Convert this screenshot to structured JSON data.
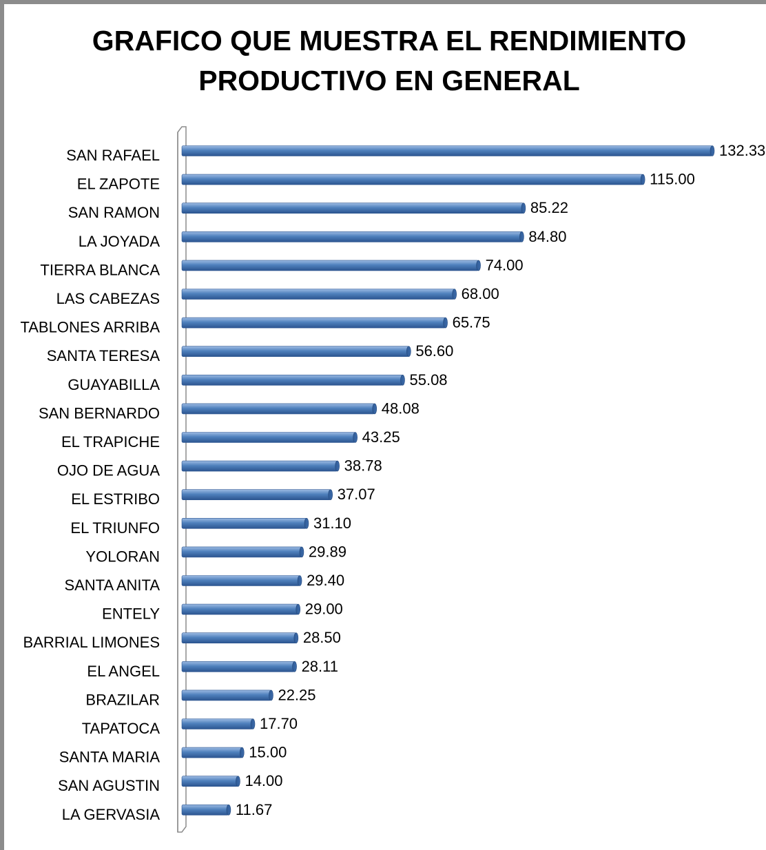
{
  "chart_data": {
    "type": "bar",
    "orientation": "horizontal",
    "title_lines": [
      "GRAFICO QUE MUESTRA EL RENDIMIENTO",
      "PRODUCTIVO EN GENERAL"
    ],
    "categories": [
      "SAN RAFAEL",
      "EL ZAPOTE",
      "SAN RAMON",
      "LA JOYADA",
      "TIERRA BLANCA",
      "LAS CABEZAS",
      "TABLONES ARRIBA",
      "SANTA TERESA",
      "GUAYABILLA",
      "SAN BERNARDO",
      "EL TRAPICHE",
      "OJO DE AGUA",
      "EL ESTRIBO",
      "EL TRIUNFO",
      "YOLORAN",
      "SANTA ANITA",
      "ENTELY",
      "BARRIAL LIMONES",
      "EL ANGEL",
      "BRAZILAR",
      "TAPATOCA",
      "SANTA MARIA",
      "SAN AGUSTIN",
      "LA GERVASIA"
    ],
    "values": [
      132.33,
      115.0,
      85.22,
      84.8,
      74.0,
      68.0,
      65.75,
      56.6,
      55.08,
      48.08,
      43.25,
      38.78,
      37.07,
      31.1,
      29.89,
      29.4,
      29.0,
      28.5,
      28.11,
      22.25,
      17.7,
      15.0,
      14.0,
      11.67
    ],
    "value_labels": [
      "132.33",
      "115.00",
      "85.22",
      "84.80",
      "74.00",
      "68.00",
      "65.75",
      "56.60",
      "55.08",
      "48.08",
      "43.25",
      "38.78",
      "37.07",
      "31.10",
      "29.89",
      "29.40",
      "29.00",
      "28.50",
      "28.11",
      "22.25",
      "17.70",
      "15.00",
      "14.00",
      "11.67"
    ],
    "xlim": [
      0,
      132.33
    ],
    "grid": false,
    "legend": "none",
    "bar_color": "#4f81bd"
  }
}
